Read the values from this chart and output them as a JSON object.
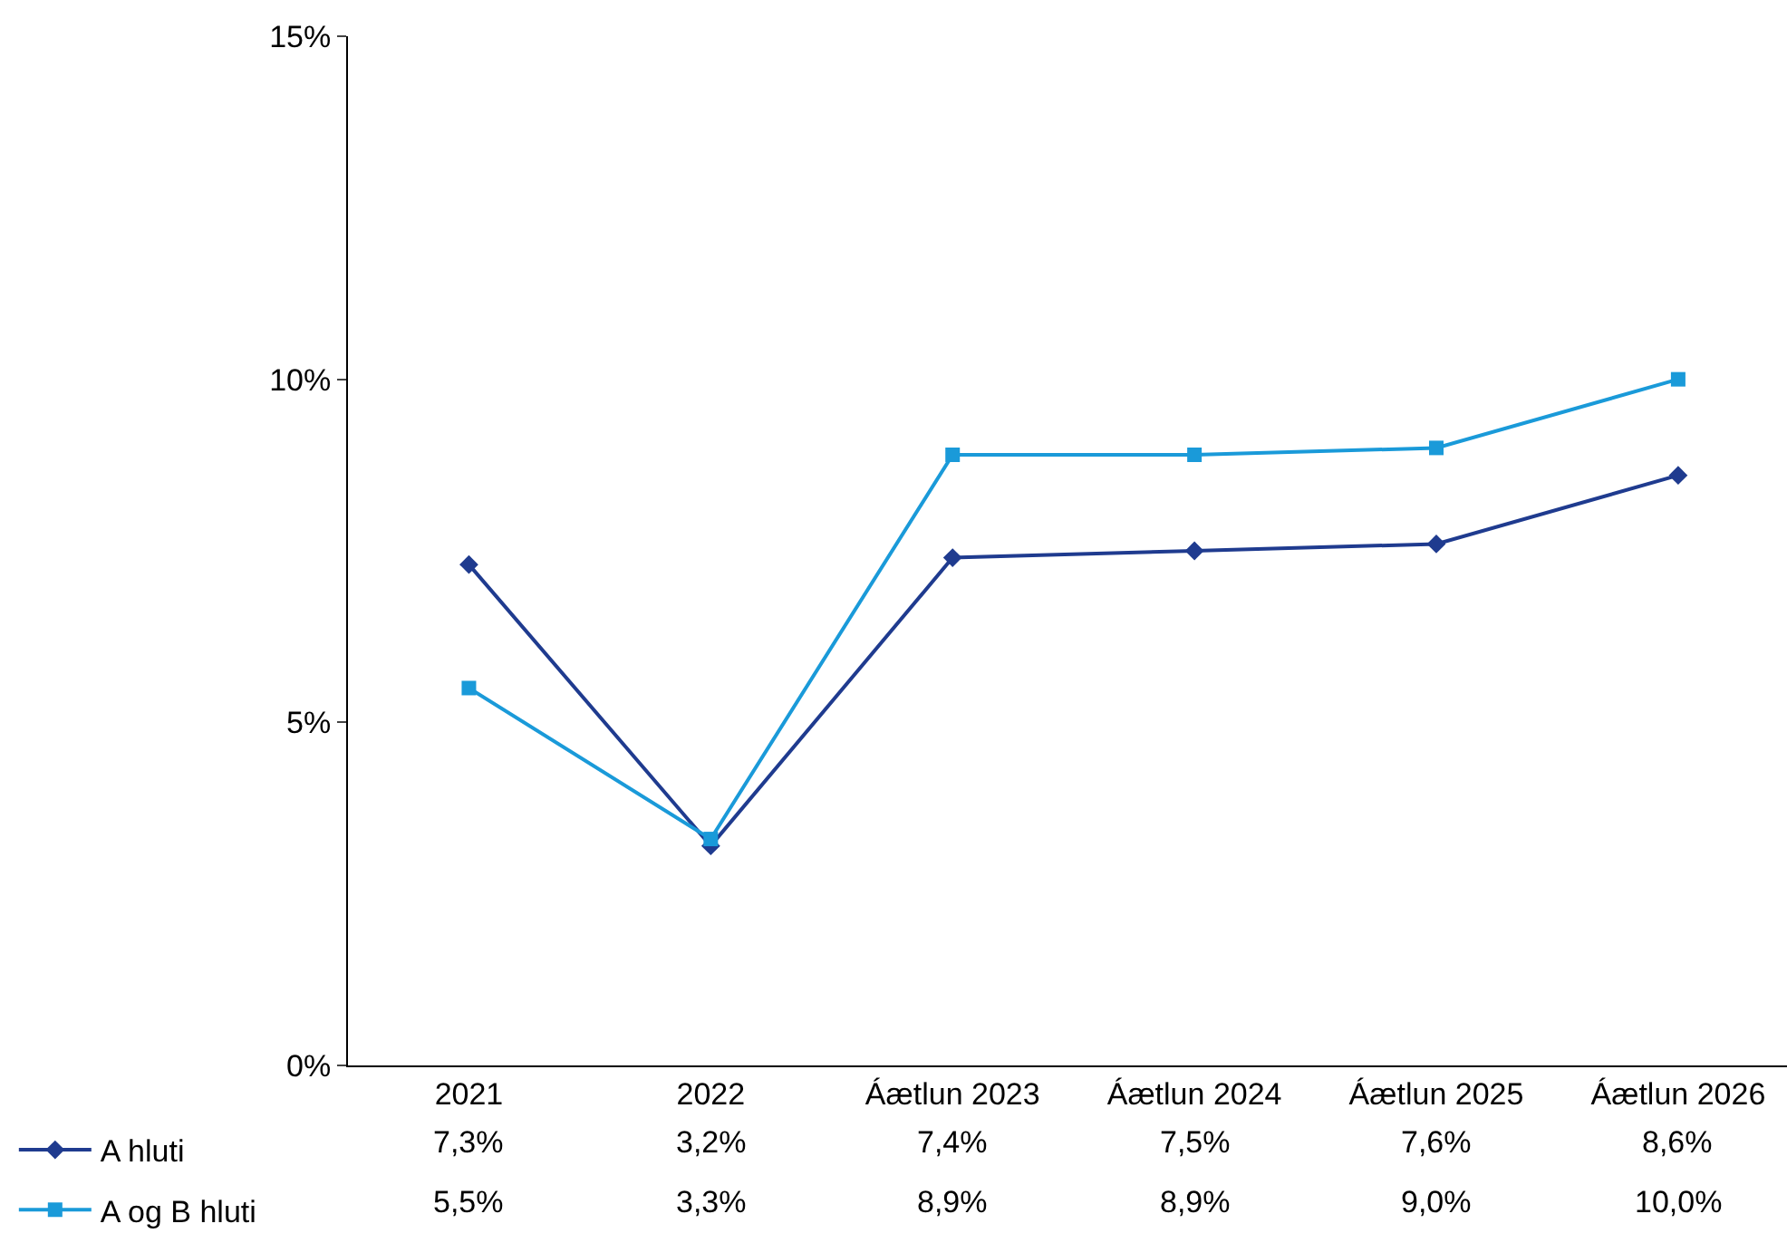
{
  "chart_data": {
    "type": "line",
    "categories": [
      "2021",
      "2022",
      "Áætlun 2023",
      "Áætlun 2024",
      "Áætlun 2025",
      "Áætlun 2026"
    ],
    "series": [
      {
        "name": "A hluti",
        "color": "#1f3b8f",
        "marker": "diamond",
        "values": [
          7.3,
          3.2,
          7.4,
          7.5,
          7.6,
          8.6
        ],
        "value_labels": [
          "7,3%",
          "3,2%",
          "7,4%",
          "7,5%",
          "7,6%",
          "8,6%"
        ]
      },
      {
        "name": "A og B hluti",
        "color": "#1a9ad9",
        "marker": "square",
        "values": [
          5.5,
          3.3,
          8.9,
          8.9,
          9.0,
          10.0
        ],
        "value_labels": [
          "5,5%",
          "3,3%",
          "8,9%",
          "8,9%",
          "9,0%",
          "10,0%"
        ]
      }
    ],
    "ylim": [
      0,
      15
    ],
    "yticks": [
      {
        "value": 0,
        "label": "0%"
      },
      {
        "value": 5,
        "label": "5%"
      },
      {
        "value": 10,
        "label": "10%"
      },
      {
        "value": 15,
        "label": "15%"
      }
    ],
    "grid": false,
    "legend": "bottom left",
    "line_style": "solid"
  }
}
